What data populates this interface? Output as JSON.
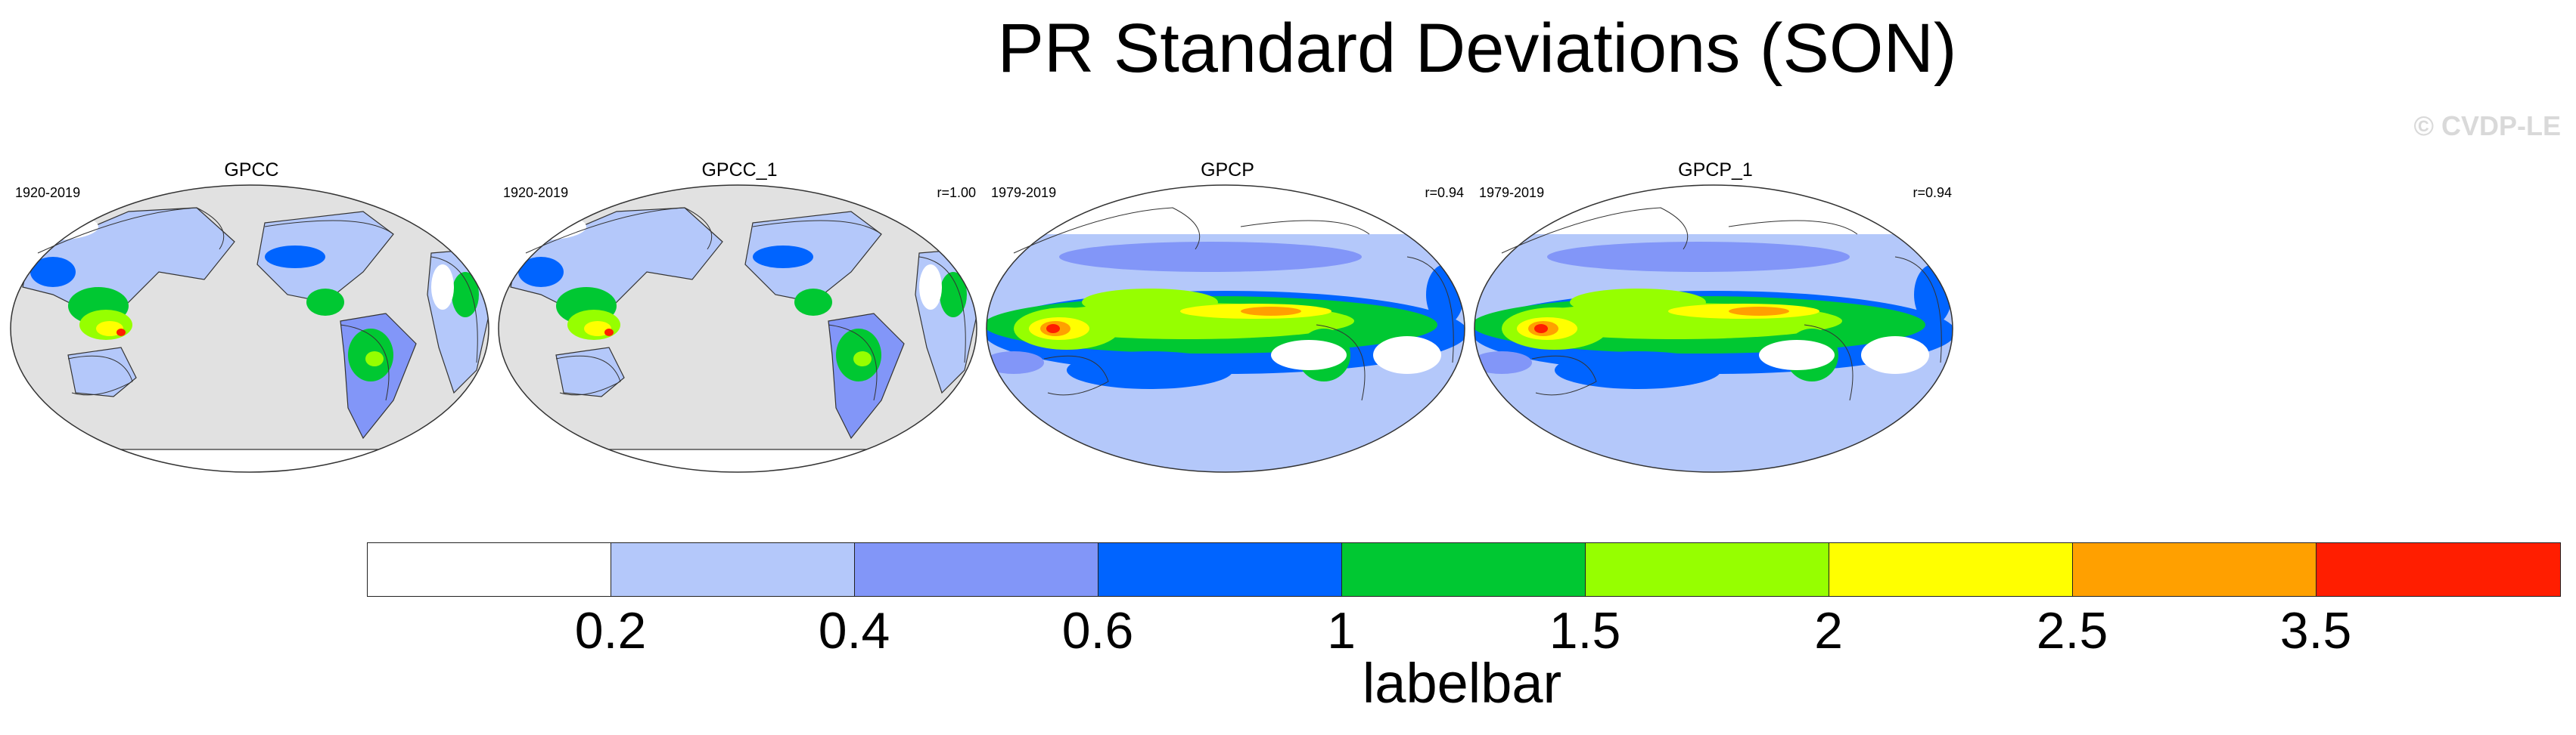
{
  "title": "PR Standard Deviations (SON)",
  "watermark": "© CVDP-LE",
  "panels": [
    {
      "name": "GPCC",
      "period": "1920-2019",
      "corr": "",
      "coverage": "land"
    },
    {
      "name": "GPCC_1",
      "period": "1920-2019",
      "corr": "r=1.00",
      "coverage": "land"
    },
    {
      "name": "GPCP",
      "period": "1979-2019",
      "corr": "r=0.94",
      "coverage": "global"
    },
    {
      "name": "GPCP_1",
      "period": "1979-2019",
      "corr": "r=0.94",
      "coverage": "global"
    }
  ],
  "labelbar": {
    "title": "labelbar",
    "colors": [
      "#ffffff",
      "#b4c8fa",
      "#8296f8",
      "#0064ff",
      "#00c832",
      "#96ff00",
      "#ffff00",
      "#ffa000",
      "#ff1e00"
    ],
    "ticks": [
      "0.2",
      "0.4",
      "0.6",
      "1",
      "1.5",
      "2",
      "2.5",
      "3.5"
    ]
  },
  "colors": {
    "missing": "#e1e1e1",
    "coastline": "#333333"
  }
}
